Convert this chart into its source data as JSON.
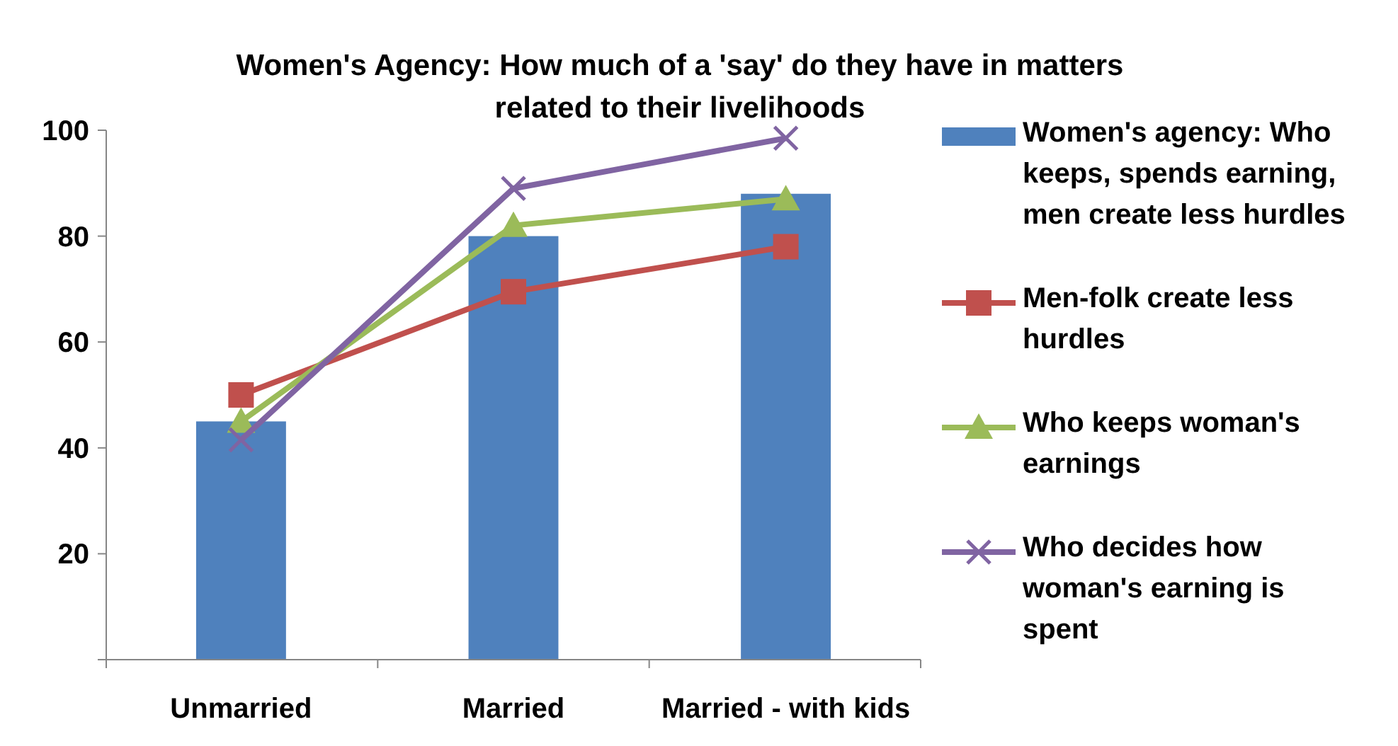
{
  "chart_data": {
    "type": "bar",
    "title": "Women's Agency: How much of a 'say' do they have in matters related to their livelihoods",
    "categories": [
      "Unmarried",
      "Married",
      "Married - with kids"
    ],
    "series": [
      {
        "name": "Women's agency: Who keeps, spends earning, men create less hurdles",
        "color": "#4f81bd",
        "values": [
          45,
          80,
          88
        ]
      },
      {
        "name": "Men-folk create less hurdles",
        "type": "line",
        "color": "#c0504d",
        "marker": "square",
        "values": [
          50,
          69.5,
          78
        ]
      },
      {
        "name": "Who keeps woman's earnings",
        "type": "line",
        "color": "#9bbb59",
        "marker": "triangle",
        "values": [
          45,
          82,
          87
        ]
      },
      {
        "name": "Who decides how woman's earning is spent",
        "type": "line",
        "color": "#8064a2",
        "marker": "cross",
        "values": [
          41.5,
          89,
          98.5
        ]
      }
    ],
    "ylim": [
      0,
      100
    ],
    "yticks": [
      {
        "value": 0,
        "label": null
      },
      20,
      40,
      60,
      80,
      100
    ],
    "grid": false,
    "legend": "right"
  }
}
